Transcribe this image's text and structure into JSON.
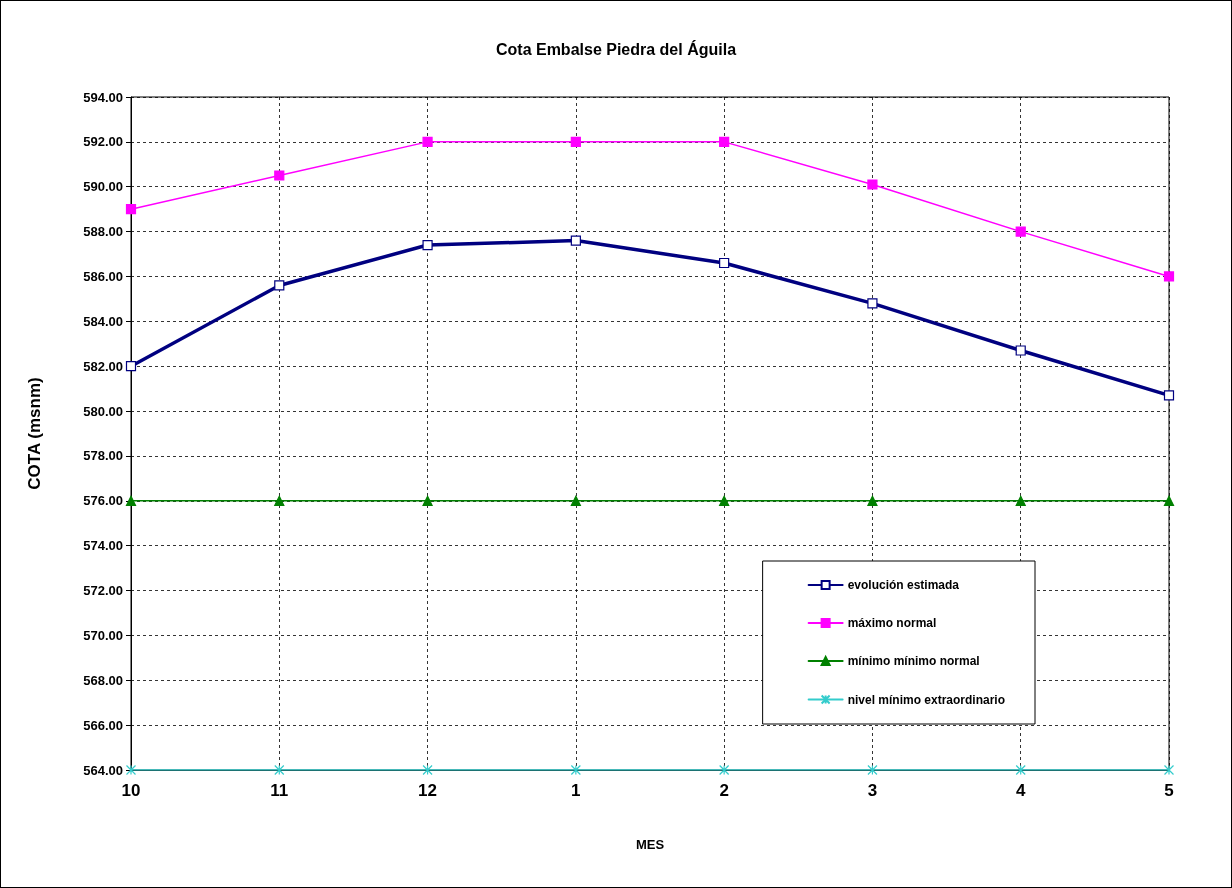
{
  "chart_data": {
    "type": "line",
    "title": "Cota Embalse Piedra del Águila",
    "xlabel": "MES",
    "ylabel": "COTA (msnm)",
    "categories": [
      "10",
      "11",
      "12",
      "1",
      "2",
      "3",
      "4",
      "5"
    ],
    "series": [
      {
        "name": "evolución estimada",
        "color": "#000080",
        "marker": "square",
        "values": [
          582.0,
          585.6,
          587.4,
          587.6,
          586.6,
          584.8,
          582.7,
          580.7
        ]
      },
      {
        "name": "máximo normal",
        "color": "#ff00ff",
        "marker": "square",
        "values": [
          589.0,
          590.5,
          592.0,
          592.0,
          592.0,
          590.1,
          588.0,
          586.0
        ]
      },
      {
        "name": "mínimo mínimo normal",
        "color": "#008000",
        "marker": "triangle",
        "values": [
          576,
          576,
          576,
          576,
          576,
          576,
          576,
          576
        ]
      },
      {
        "name": "nivel mínimo extraordinario",
        "color": "#33cccc",
        "marker": "cross",
        "values": [
          564,
          564,
          564,
          564,
          564,
          564,
          564,
          564
        ]
      }
    ],
    "ylim": [
      564,
      594
    ],
    "yticks": [
      {
        "value": 564,
        "label": "564.00"
      },
      {
        "value": 566,
        "label": "566.00"
      },
      {
        "value": 568,
        "label": "568.00"
      },
      {
        "value": 570,
        "label": "570.00"
      },
      {
        "value": 572,
        "label": "572.00"
      },
      {
        "value": 574,
        "label": "574.00"
      },
      {
        "value": 576,
        "label": "576.00"
      },
      {
        "value": 578,
        "label": "578.00"
      },
      {
        "value": 580,
        "label": "580.00"
      },
      {
        "value": 582,
        "label": "582.00"
      },
      {
        "value": 584,
        "label": "584.00"
      },
      {
        "value": 586,
        "label": "586.00"
      },
      {
        "value": 588,
        "label": "588.00"
      },
      {
        "value": 590,
        "label": "590.00"
      },
      {
        "value": 592,
        "label": "592.00"
      },
      {
        "value": 594,
        "label": "594.00"
      }
    ],
    "grid": true,
    "legend": "bottom right",
    "line_style": "solid"
  }
}
